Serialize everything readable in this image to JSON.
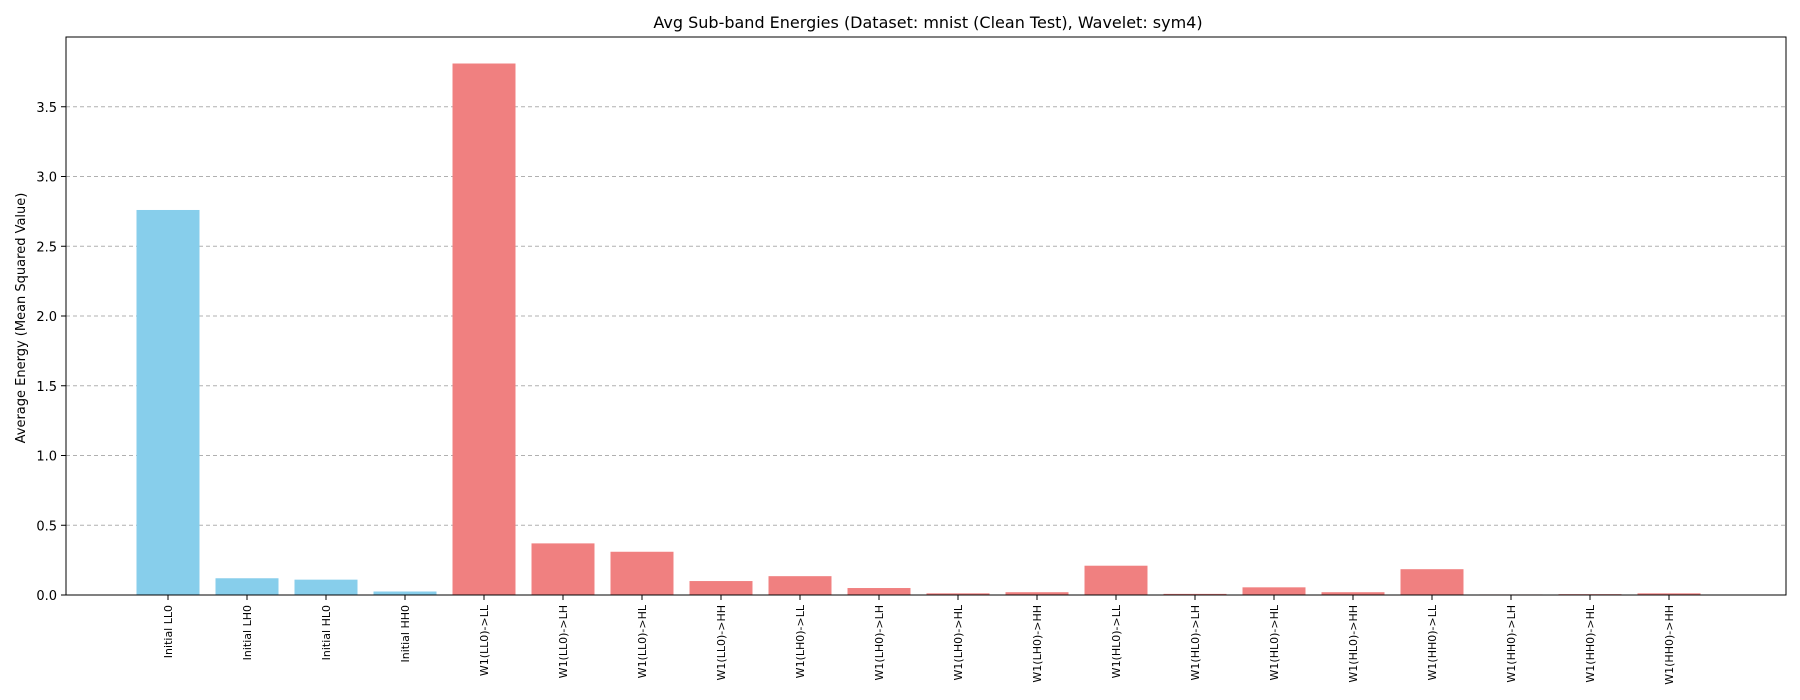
{
  "chart_data": {
    "type": "bar",
    "title": "Avg Sub-band Energies (Dataset: mnist (Clean Test), Wavelet: sym4)",
    "xlabel": "",
    "ylabel": "Average Energy (Mean Squared Value)",
    "ylim": [
      0,
      4.0
    ],
    "yticks": [
      "0.0",
      "0.5",
      "1.0",
      "1.5",
      "2.0",
      "2.5",
      "3.0",
      "3.5"
    ],
    "grid": "y",
    "categories": [
      "Initial LL0",
      "Initial LH0",
      "Initial HL0",
      "Initial HH0",
      "W1(LL0)->LL",
      "W1(LL0)->LH",
      "W1(LL0)->HL",
      "W1(LL0)->HH",
      "W1(LH0)->LL",
      "W1(LH0)->LH",
      "W1(LH0)->HL",
      "W1(LH0)->HH",
      "W1(HL0)->LL",
      "W1(HL0)->LH",
      "W1(HL0)->HL",
      "W1(HL0)->HH",
      "W1(HH0)->LL",
      "W1(HH0)->LH",
      "W1(HH0)->HL",
      "W1(HH0)->HH"
    ],
    "values": [
      2.76,
      0.12,
      0.11,
      0.025,
      3.81,
      0.37,
      0.31,
      0.1,
      0.135,
      0.05,
      0.012,
      0.02,
      0.21,
      0.008,
      0.055,
      0.02,
      0.185,
      0.004,
      0.006,
      0.012
    ],
    "bar_colors": [
      "#87CEEB",
      "#87CEEB",
      "#87CEEB",
      "#87CEEB",
      "#F08080",
      "#F08080",
      "#F08080",
      "#F08080",
      "#F08080",
      "#F08080",
      "#F08080",
      "#F08080",
      "#F08080",
      "#F08080",
      "#F08080",
      "#F08080",
      "#F08080",
      "#F08080",
      "#F08080",
      "#F08080"
    ]
  }
}
